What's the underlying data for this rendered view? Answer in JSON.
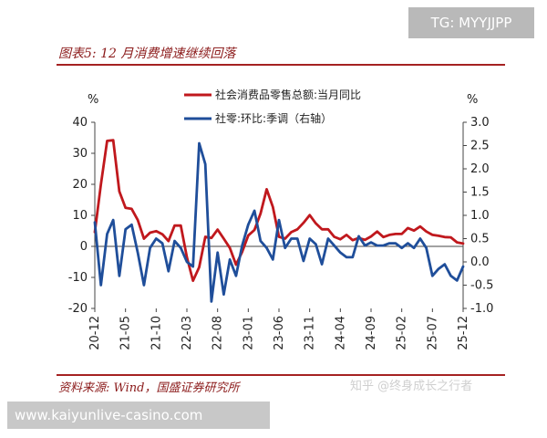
{
  "figure": {
    "title": "图表5:  12 月消费增速继续回落",
    "source": "资料来源:  Wind，国盛证券研究所"
  },
  "watermarks": {
    "tg": "TG: MYYJJPP",
    "url": "www.kaiyunlive-casino.com",
    "zhihu": "知乎 @终身成长之行者"
  },
  "colors": {
    "retail_yoy": "#c0181d",
    "retail_mom": "#1f4e9a",
    "rule": "#a52222"
  },
  "chart_data": {
    "type": "line",
    "title": "",
    "left_axis": {
      "unit_label": "%",
      "ylim": [
        -20,
        40
      ],
      "ticks": [
        "40",
        "30",
        "20",
        "10",
        "0",
        "-10",
        "-20"
      ],
      "tick_values": [
        40,
        30,
        20,
        10,
        0,
        -10,
        -20
      ]
    },
    "right_axis": {
      "unit_label": "%",
      "ylim": [
        -1.0,
        3.0
      ],
      "ticks": [
        "3.0",
        "2.5",
        "2.0",
        "1.5",
        "1.0",
        "0.5",
        "0.0",
        "-0.5",
        "-1.0"
      ],
      "tick_values": [
        3.0,
        2.5,
        2.0,
        1.5,
        1.0,
        0.5,
        0.0,
        -0.5,
        -1.0
      ]
    },
    "x_tick_labels": [
      "20-12",
      "21-05",
      "21-10",
      "22-03",
      "22-08",
      "23-01",
      "23-06",
      "23-11",
      "24-04",
      "24-09",
      "25-02",
      "25-07",
      "25-12"
    ],
    "legend_placement": "top-center",
    "grid": false,
    "series": [
      {
        "name": "社会消费品零售总额:当月同比",
        "axis": "left",
        "x": [
          "20-12",
          "21-01",
          "21-02",
          "21-03",
          "21-04",
          "21-05",
          "21-06",
          "21-07",
          "21-08",
          "21-09",
          "21-10",
          "21-11",
          "21-12",
          "22-01",
          "22-02",
          "22-03",
          "22-04",
          "22-05",
          "22-06",
          "22-07",
          "22-08",
          "22-09",
          "22-10",
          "22-11",
          "22-12",
          "23-01",
          "23-02",
          "23-03",
          "23-04",
          "23-05",
          "23-06",
          "23-07",
          "23-08",
          "23-09",
          "23-10",
          "23-11",
          "23-12",
          "24-01",
          "24-02",
          "24-03",
          "24-04",
          "24-05",
          "24-06",
          "24-07",
          "24-08",
          "24-09",
          "24-10",
          "24-11",
          "24-12",
          "25-01",
          "25-02",
          "25-03",
          "25-04",
          "25-05",
          "25-06",
          "25-07",
          "25-08",
          "25-09",
          "25-10",
          "25-11",
          "25-12"
        ],
        "values": [
          4.6,
          20.0,
          34.0,
          34.2,
          17.7,
          12.4,
          12.1,
          8.5,
          2.5,
          4.4,
          4.9,
          3.9,
          1.7,
          6.7,
          6.7,
          -3.5,
          -11.1,
          -6.7,
          3.1,
          2.7,
          5.4,
          2.5,
          -0.5,
          -5.9,
          -1.8,
          3.5,
          5.3,
          10.6,
          18.4,
          12.7,
          3.1,
          2.5,
          4.6,
          5.5,
          7.6,
          10.1,
          7.4,
          5.5,
          5.5,
          3.1,
          2.3,
          3.7,
          2.0,
          2.7,
          2.1,
          3.2,
          4.8,
          3.0,
          3.7,
          4.0,
          4.0,
          5.9,
          5.1,
          6.4,
          4.8,
          3.7,
          3.4,
          3.0,
          2.9,
          1.3,
          0.9
        ]
      },
      {
        "name": "社零:环比:季调（右轴）",
        "axis": "right",
        "x": [
          "20-12",
          "21-01",
          "21-02",
          "21-03",
          "21-04",
          "21-05",
          "21-06",
          "21-07",
          "21-08",
          "21-09",
          "21-10",
          "21-11",
          "21-12",
          "22-01",
          "22-02",
          "22-03",
          "22-04",
          "22-05",
          "22-06",
          "22-07",
          "22-08",
          "22-09",
          "22-10",
          "22-11",
          "22-12",
          "23-01",
          "23-02",
          "23-03",
          "23-04",
          "23-05",
          "23-06",
          "23-07",
          "23-08",
          "23-09",
          "23-10",
          "23-11",
          "23-12",
          "24-01",
          "24-02",
          "24-03",
          "24-04",
          "24-05",
          "24-06",
          "24-07",
          "24-08",
          "24-09",
          "24-10",
          "24-11",
          "24-12",
          "25-01",
          "25-02",
          "25-03",
          "25-04",
          "25-05",
          "25-06",
          "25-07",
          "25-08",
          "25-09",
          "25-10",
          "25-11",
          "25-12"
        ],
        "values": [
          0.85,
          -0.5,
          0.6,
          0.9,
          -0.3,
          0.7,
          0.8,
          0.2,
          -0.5,
          0.3,
          0.5,
          0.4,
          -0.2,
          0.45,
          0.3,
          0.0,
          -0.1,
          2.55,
          2.1,
          -0.85,
          0.2,
          -0.7,
          0.05,
          -0.3,
          0.35,
          0.8,
          1.1,
          0.45,
          0.3,
          0.05,
          0.9,
          0.3,
          0.5,
          0.5,
          0.02,
          0.5,
          0.38,
          -0.05,
          0.5,
          0.35,
          0.2,
          0.1,
          0.1,
          0.55,
          0.35,
          0.42,
          0.35,
          0.35,
          0.4,
          0.4,
          0.3,
          0.4,
          0.3,
          0.5,
          0.3,
          -0.3,
          -0.15,
          -0.05,
          -0.3,
          -0.4,
          -0.1
        ]
      }
    ]
  }
}
